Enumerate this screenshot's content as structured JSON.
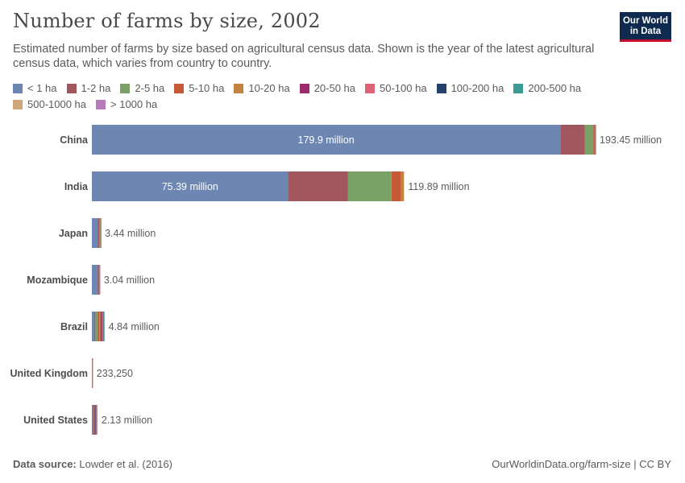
{
  "header": {
    "title": "Number of farms by size, 2002",
    "subtitle": "Estimated number of farms by size based on agricultural census data. Shown is the year of the latest agricultural census data, which varies from country to country.",
    "logo_line1": "Our World",
    "logo_line2": "in Data"
  },
  "footer": {
    "source_label": "Data source:",
    "source_value": "Lowder et al. (2016)",
    "url": "OurWorldinData.org/farm-size | CC BY"
  },
  "chart_data": {
    "type": "bar",
    "orientation": "horizontal",
    "stacked": true,
    "title": "Number of farms by size, 2002",
    "categories": [
      "China",
      "India",
      "Japan",
      "Mozambique",
      "Brazil",
      "United Kingdom",
      "United States"
    ],
    "totals": [
      193450000,
      119890000,
      3440000,
      3040000,
      4840000,
      233250,
      2130000
    ],
    "total_labels": [
      "193.45 million",
      "119.89 million",
      "3.44 million",
      "3.04 million",
      "4.84 million",
      "233,250",
      "2.13 million"
    ],
    "legend_placement": "top",
    "series": [
      {
        "name": "< 1 ha",
        "color": "#6d87b2",
        "values": [
          179900000,
          75390000,
          2200000,
          2100000,
          900000,
          20000,
          130000
        ],
        "labels": [
          "179.9 million",
          "75.39 million",
          "",
          "",
          "",
          "",
          ""
        ]
      },
      {
        "name": "1-2 ha",
        "color": "#a2565e",
        "values": [
          9400000,
          23000000,
          700000,
          650000,
          450000,
          15000,
          120000
        ]
      },
      {
        "name": "2-5 ha",
        "color": "#78a067",
        "values": [
          3300000,
          16700000,
          390000,
          220000,
          850000,
          28000,
          180000
        ]
      },
      {
        "name": "5-10 ha",
        "color": "#c65a37",
        "values": [
          600000,
          3700000,
          100000,
          40000,
          600000,
          25000,
          170000
        ]
      },
      {
        "name": "10-20 ha",
        "color": "#c28440",
        "values": [
          150000,
          1100000,
          30000,
          15000,
          500000,
          25000,
          180000
        ]
      },
      {
        "name": "20-50 ha",
        "color": "#9b2b6b",
        "values": [
          70000,
          0,
          15000,
          10000,
          550000,
          38000,
          300000
        ]
      },
      {
        "name": "50-100 ha",
        "color": "#dd6478",
        "values": [
          20000,
          0,
          3000,
          3000,
          390000,
          27000,
          250000
        ]
      },
      {
        "name": "100-200 ha",
        "color": "#26416c",
        "values": [
          7000,
          0,
          1000,
          1000,
          200000,
          25000,
          240000
        ]
      },
      {
        "name": "200-500 ha",
        "color": "#3a9c94",
        "values": [
          2000,
          0,
          500,
          500,
          200000,
          18000,
          270000
        ]
      },
      {
        "name": "500-1000 ha",
        "color": "#cfa67a",
        "values": [
          500,
          0,
          200,
          200,
          100000,
          6500,
          140000
        ]
      },
      {
        "name": "> 1000 ha",
        "color": "#b77bba",
        "values": [
          500,
          0,
          100,
          100,
          100000,
          5750,
          150000
        ]
      }
    ]
  }
}
